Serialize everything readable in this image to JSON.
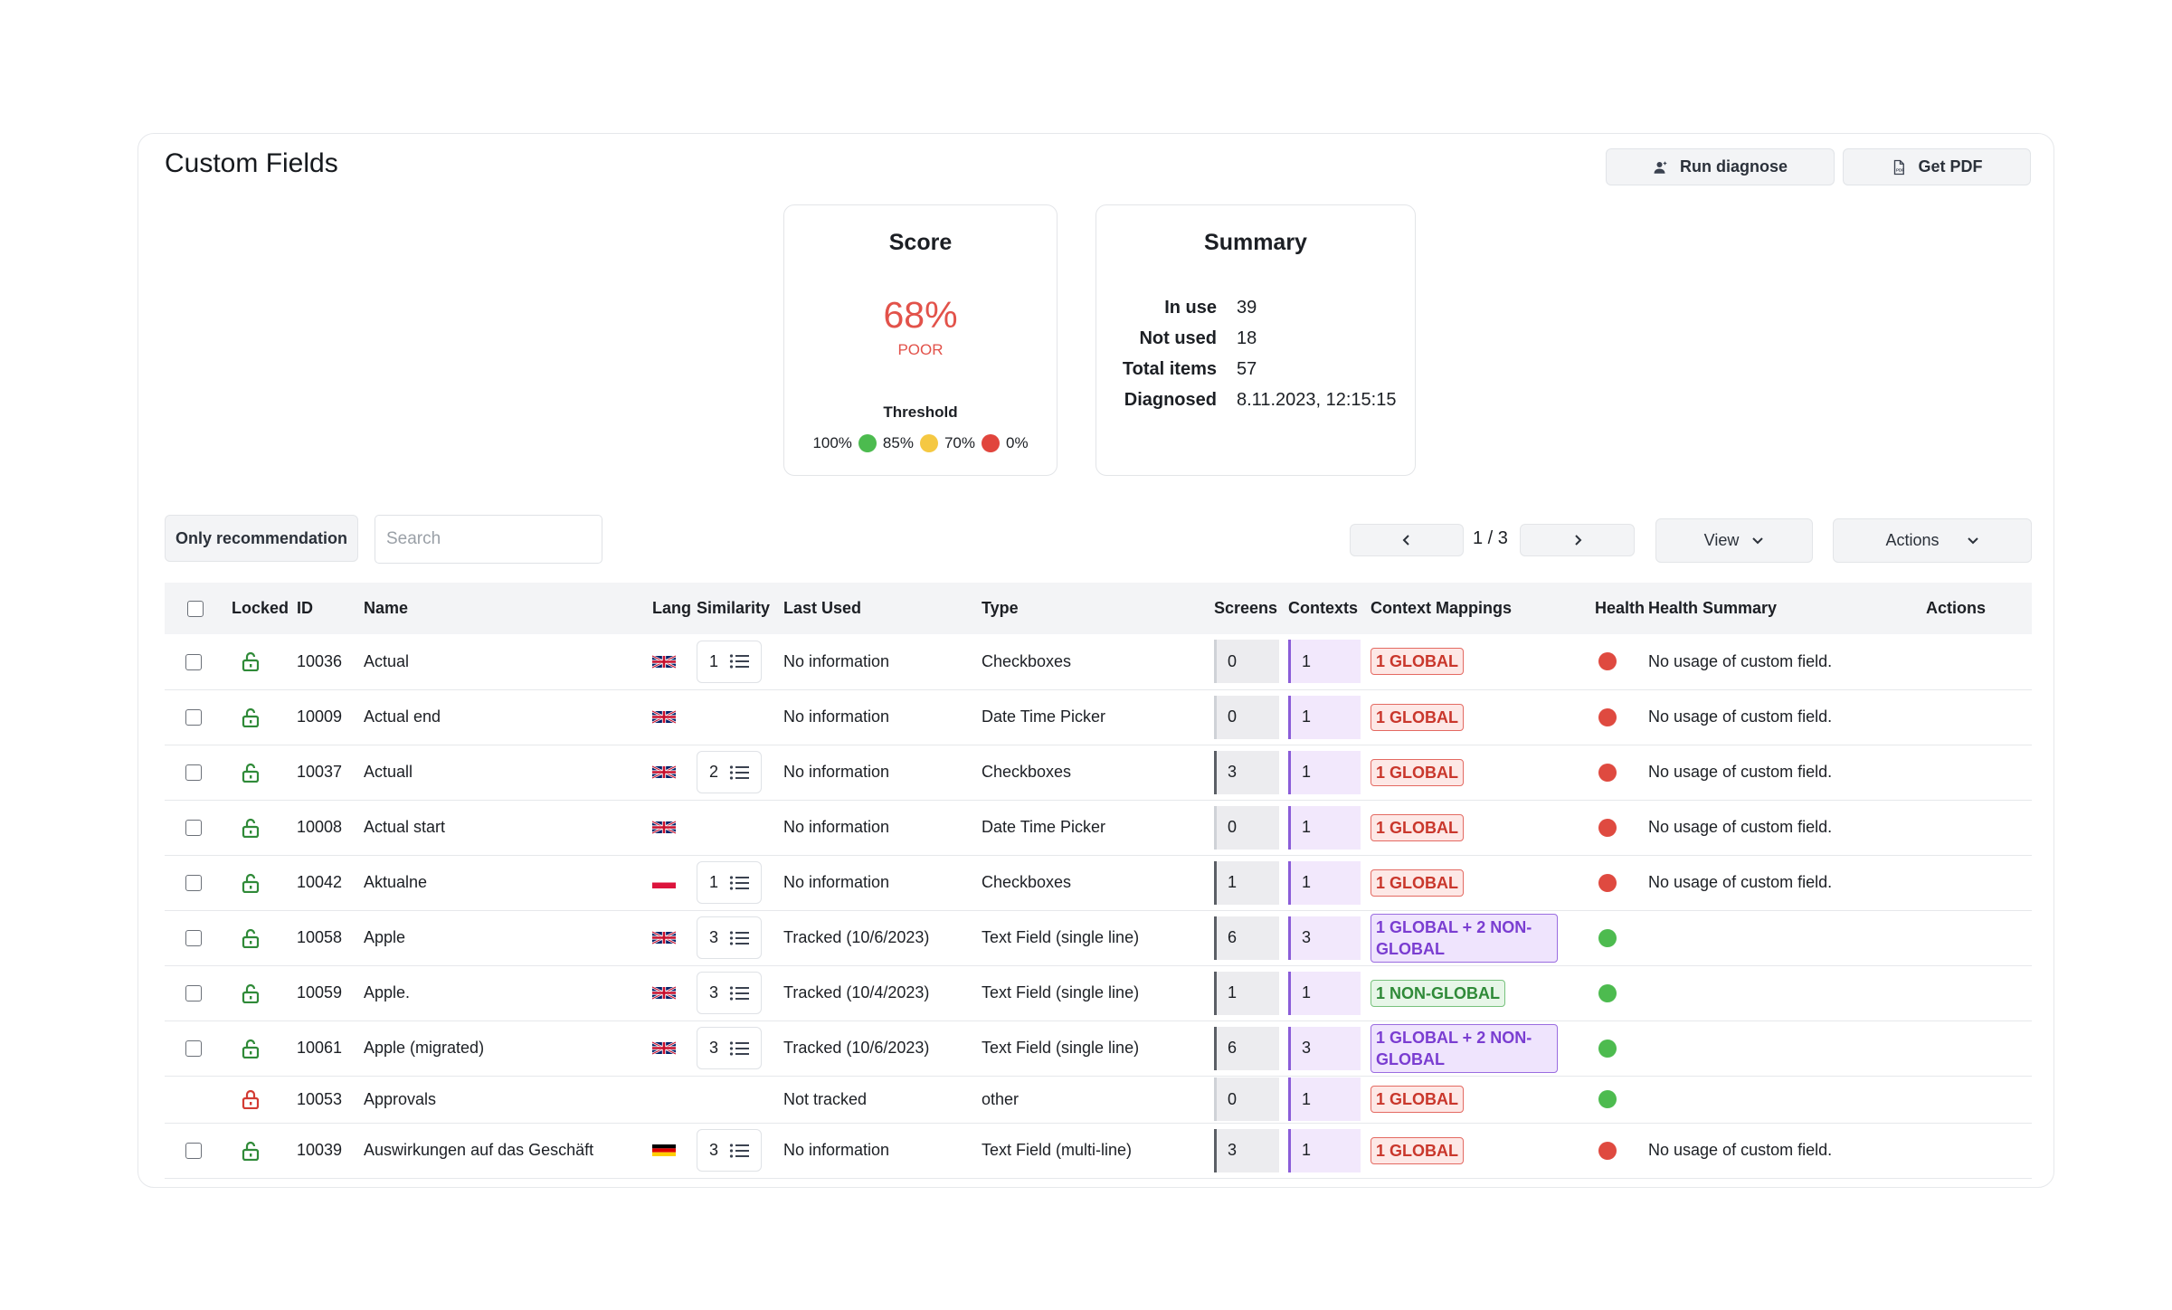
{
  "page": {
    "title": "Custom Fields",
    "run_diagnose_label": "Run diagnose",
    "get_pdf_label": "Get PDF"
  },
  "score": {
    "title": "Score",
    "value": "68%",
    "rating": "POOR",
    "threshold_title": "Threshold",
    "thresholds": [
      "100%",
      "85%",
      "70%",
      "0%"
    ]
  },
  "summary": {
    "title": "Summary",
    "rows": [
      {
        "label": "In use",
        "value": "39"
      },
      {
        "label": "Not used",
        "value": "18"
      },
      {
        "label": "Total items",
        "value": "57"
      },
      {
        "label": "Diagnosed",
        "value": "8.11.2023, 12:15:15"
      }
    ]
  },
  "toolbar": {
    "only_recommendation_label": "Only recommendation",
    "search_placeholder": "Search",
    "page_indicator": "1 / 3",
    "view_label": "View",
    "actions_label": "Actions"
  },
  "table": {
    "columns": {
      "locked": "Locked",
      "id": "ID",
      "name": "Name",
      "lang": "Lang",
      "similarity": "Similarity",
      "last_used": "Last Used",
      "type": "Type",
      "screens": "Screens",
      "contexts": "Contexts",
      "context_mappings": "Context Mappings",
      "health": "Health",
      "health_summary": "Health Summary",
      "actions": "Actions"
    },
    "rows": [
      {
        "id": "10036",
        "name": "Actual",
        "lang": "en-flag",
        "similarity": "1",
        "last_used": "No information",
        "type": "Checkboxes",
        "screens": "0",
        "contexts": "1",
        "mapping": "1 GLOBAL",
        "health": "red",
        "summary": "No usage of custom field."
      },
      {
        "id": "10009",
        "name": "Actual end",
        "lang": "en-flag",
        "similarity": "",
        "last_used": "No information",
        "type": "Date Time Picker",
        "screens": "0",
        "contexts": "1",
        "mapping": "1 GLOBAL",
        "health": "red",
        "summary": "No usage of custom field."
      },
      {
        "id": "10037",
        "name": "Actuall",
        "lang": "en-flag",
        "similarity": "2",
        "last_used": "No information",
        "type": "Checkboxes",
        "screens": "3",
        "contexts": "1",
        "mapping": "1 GLOBAL",
        "health": "red",
        "summary": "No usage of custom field."
      },
      {
        "id": "10008",
        "name": "Actual start",
        "lang": "en-flag",
        "similarity": "",
        "last_used": "No information",
        "type": "Date Time Picker",
        "screens": "0",
        "contexts": "1",
        "mapping": "1 GLOBAL",
        "health": "red",
        "summary": "No usage of custom field."
      },
      {
        "id": "10042",
        "name": "Aktualne",
        "lang": "pl-flag",
        "similarity": "1",
        "last_used": "No information",
        "type": "Checkboxes",
        "screens": "1",
        "contexts": "1",
        "mapping": "1 GLOBAL",
        "health": "red",
        "summary": "No usage of custom field."
      },
      {
        "id": "10058",
        "name": "Apple",
        "lang": "en-flag",
        "similarity": "3",
        "last_used": "Tracked (10/6/2023)",
        "type": "Text Field (single line)",
        "screens": "6",
        "contexts": "3",
        "mapping": "1 GLOBAL + 2 NON-GLOBAL",
        "health": "green",
        "summary": ""
      },
      {
        "id": "10059",
        "name": "Apple.",
        "lang": "en-flag",
        "similarity": "3",
        "last_used": "Tracked (10/4/2023)",
        "type": "Text Field (single line)",
        "screens": "1",
        "contexts": "1",
        "mapping": "1 NON-GLOBAL",
        "health": "green",
        "summary": ""
      },
      {
        "id": "10061",
        "name": "Apple (migrated)",
        "lang": "en-flag",
        "similarity": "3",
        "last_used": "Tracked (10/6/2023)",
        "type": "Text Field (single line)",
        "screens": "6",
        "contexts": "3",
        "mapping": "1 GLOBAL + 2 NON-GLOBAL",
        "health": "green",
        "summary": ""
      },
      {
        "id": "10053",
        "name": "Approvals",
        "lang": "",
        "similarity": "",
        "last_used": "Not tracked",
        "type": "other",
        "screens": "0",
        "contexts": "1",
        "mapping": "1 GLOBAL",
        "health": "green",
        "summary": ""
      },
      {
        "id": "10039",
        "name": "Auswirkungen auf das Geschäft",
        "lang": "de-flag",
        "similarity": "3",
        "last_used": "No information",
        "type": "Text Field (multi-line)",
        "screens": "3",
        "contexts": "1",
        "mapping": "1 GLOBAL",
        "health": "red",
        "summary": "No usage of custom field."
      }
    ]
  },
  "colors": {
    "score_red": "#e2524a",
    "health_green": "#4dbb4f",
    "health_red": "#df4a40",
    "threshold_yellow": "#f5c842",
    "contexts_purple": "#8a5cd8"
  }
}
